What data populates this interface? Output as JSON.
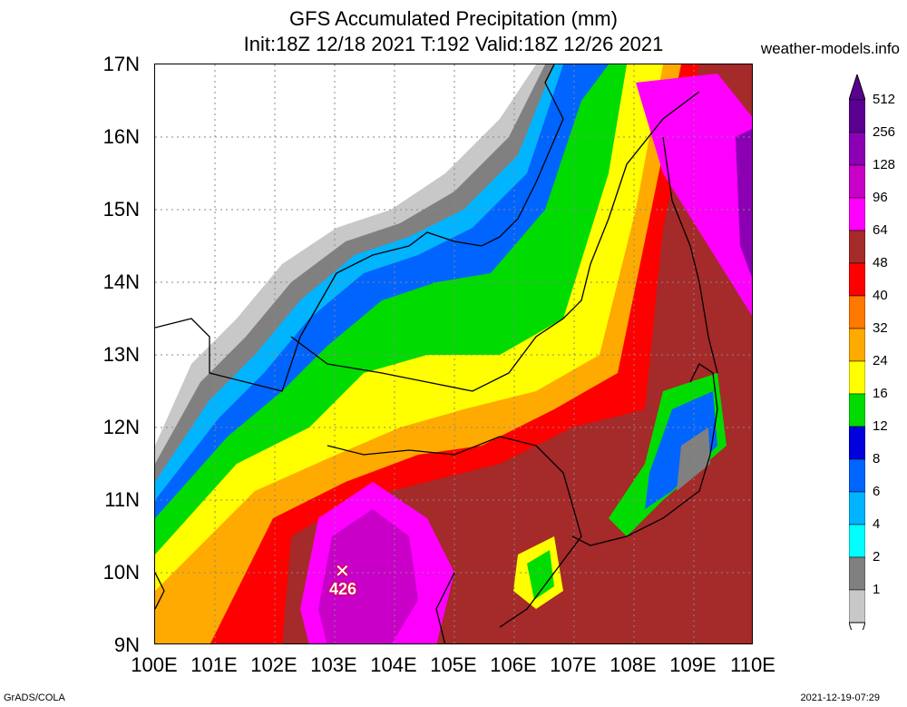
{
  "title": {
    "line1": "GFS Accumulated Precipitation (mm)",
    "line2": "Init:18Z 12/18 2021 T:192 Valid:18Z 12/26 2021"
  },
  "site": "weather-models.info",
  "axes": {
    "lat_labels": [
      "17N",
      "16N",
      "15N",
      "14N",
      "13N",
      "12N",
      "11N",
      "10N",
      "9N"
    ],
    "lon_labels": [
      "100E",
      "101E",
      "102E",
      "103E",
      "104E",
      "105E",
      "106E",
      "107E",
      "108E",
      "109E",
      "110E"
    ]
  },
  "max_marker": {
    "symbol": "✕",
    "value": "426"
  },
  "legend": {
    "levels": [
      "512",
      "256",
      "128",
      "96",
      "64",
      "48",
      "40",
      "32",
      "24",
      "16",
      "12",
      "8",
      "6",
      "4",
      "2",
      "1"
    ],
    "colors": [
      "#5a0090",
      "#8c00b4",
      "#c800c8",
      "#ff00ff",
      "#a52a2a",
      "#ff0000",
      "#ff7800",
      "#ffaa00",
      "#ffff00",
      "#00dc00",
      "#0000dc",
      "#0064ff",
      "#00b4ff",
      "#00ffff",
      "#808080",
      "#c8c8c8"
    ]
  },
  "footer": {
    "left": "GrADS/COLA",
    "right": "2021-12-19-07:29"
  }
}
